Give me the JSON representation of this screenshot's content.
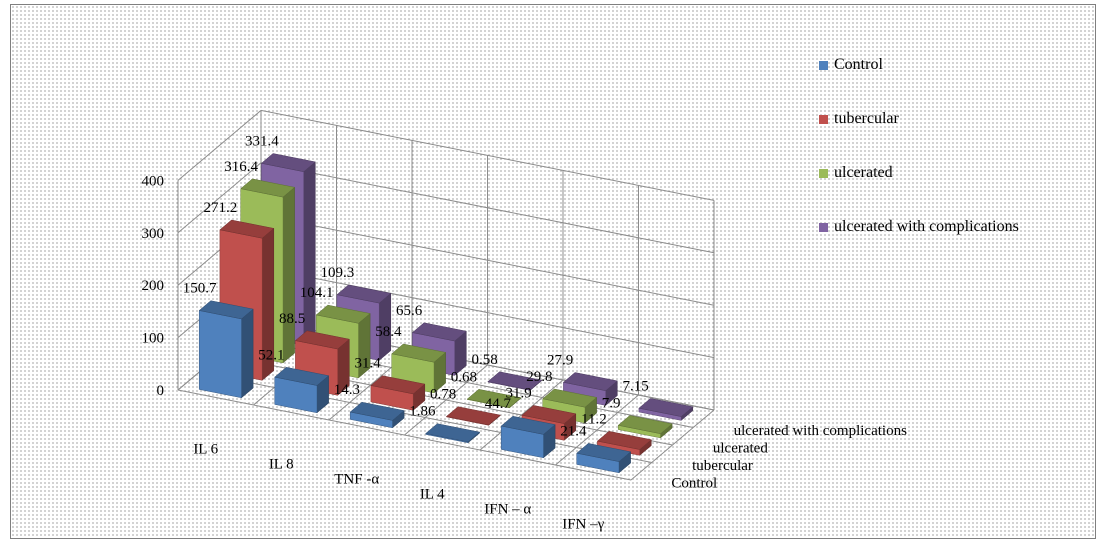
{
  "chart_data": {
    "type": "bar-3d",
    "title": "",
    "categories": [
      "IL 6",
      "IL 8",
      "TNF -α",
      "IL 4",
      "IFN – α",
      "IFN –γ"
    ],
    "depth_labels": [
      "Control",
      "tubercular",
      "ulcerated",
      "ulcerated with complications"
    ],
    "y_ticks": [
      "0",
      "100",
      "200",
      "300",
      "400"
    ],
    "ylim": [
      0,
      400
    ],
    "series": [
      {
        "name": "Control",
        "color": "#4f81bd",
        "values": [
          150.7,
          52.1,
          14.3,
          1.86,
          44.7,
          21.4
        ],
        "labels": [
          "150.7",
          "52.1",
          "14.3",
          "1.86",
          "44.7",
          "21.4"
        ]
      },
      {
        "name": "tubercular",
        "color": "#c0504d",
        "values": [
          271.2,
          88.5,
          31.4,
          0.78,
          31.9,
          11.2
        ],
        "labels": [
          "271.2",
          "88.5",
          "31.4",
          "0.78",
          "31.9",
          "11.2"
        ]
      },
      {
        "name": "ulcerated",
        "color": "#9bbb59",
        "values": [
          316.4,
          104.1,
          58.4,
          0.68,
          29.8,
          7.9
        ],
        "labels": [
          "316.4",
          "104.1",
          "58.4",
          "0.68",
          "29.8",
          "7.9"
        ]
      },
      {
        "name": "ulcerated with complications",
        "color": "#8064a2",
        "values": [
          331.4,
          109.3,
          65.6,
          0.58,
          27.9,
          7.15
        ],
        "labels": [
          "331.4",
          "109.3",
          "65.6",
          "0.58",
          "27.9",
          "7.15"
        ]
      }
    ],
    "legend_position": "right"
  }
}
